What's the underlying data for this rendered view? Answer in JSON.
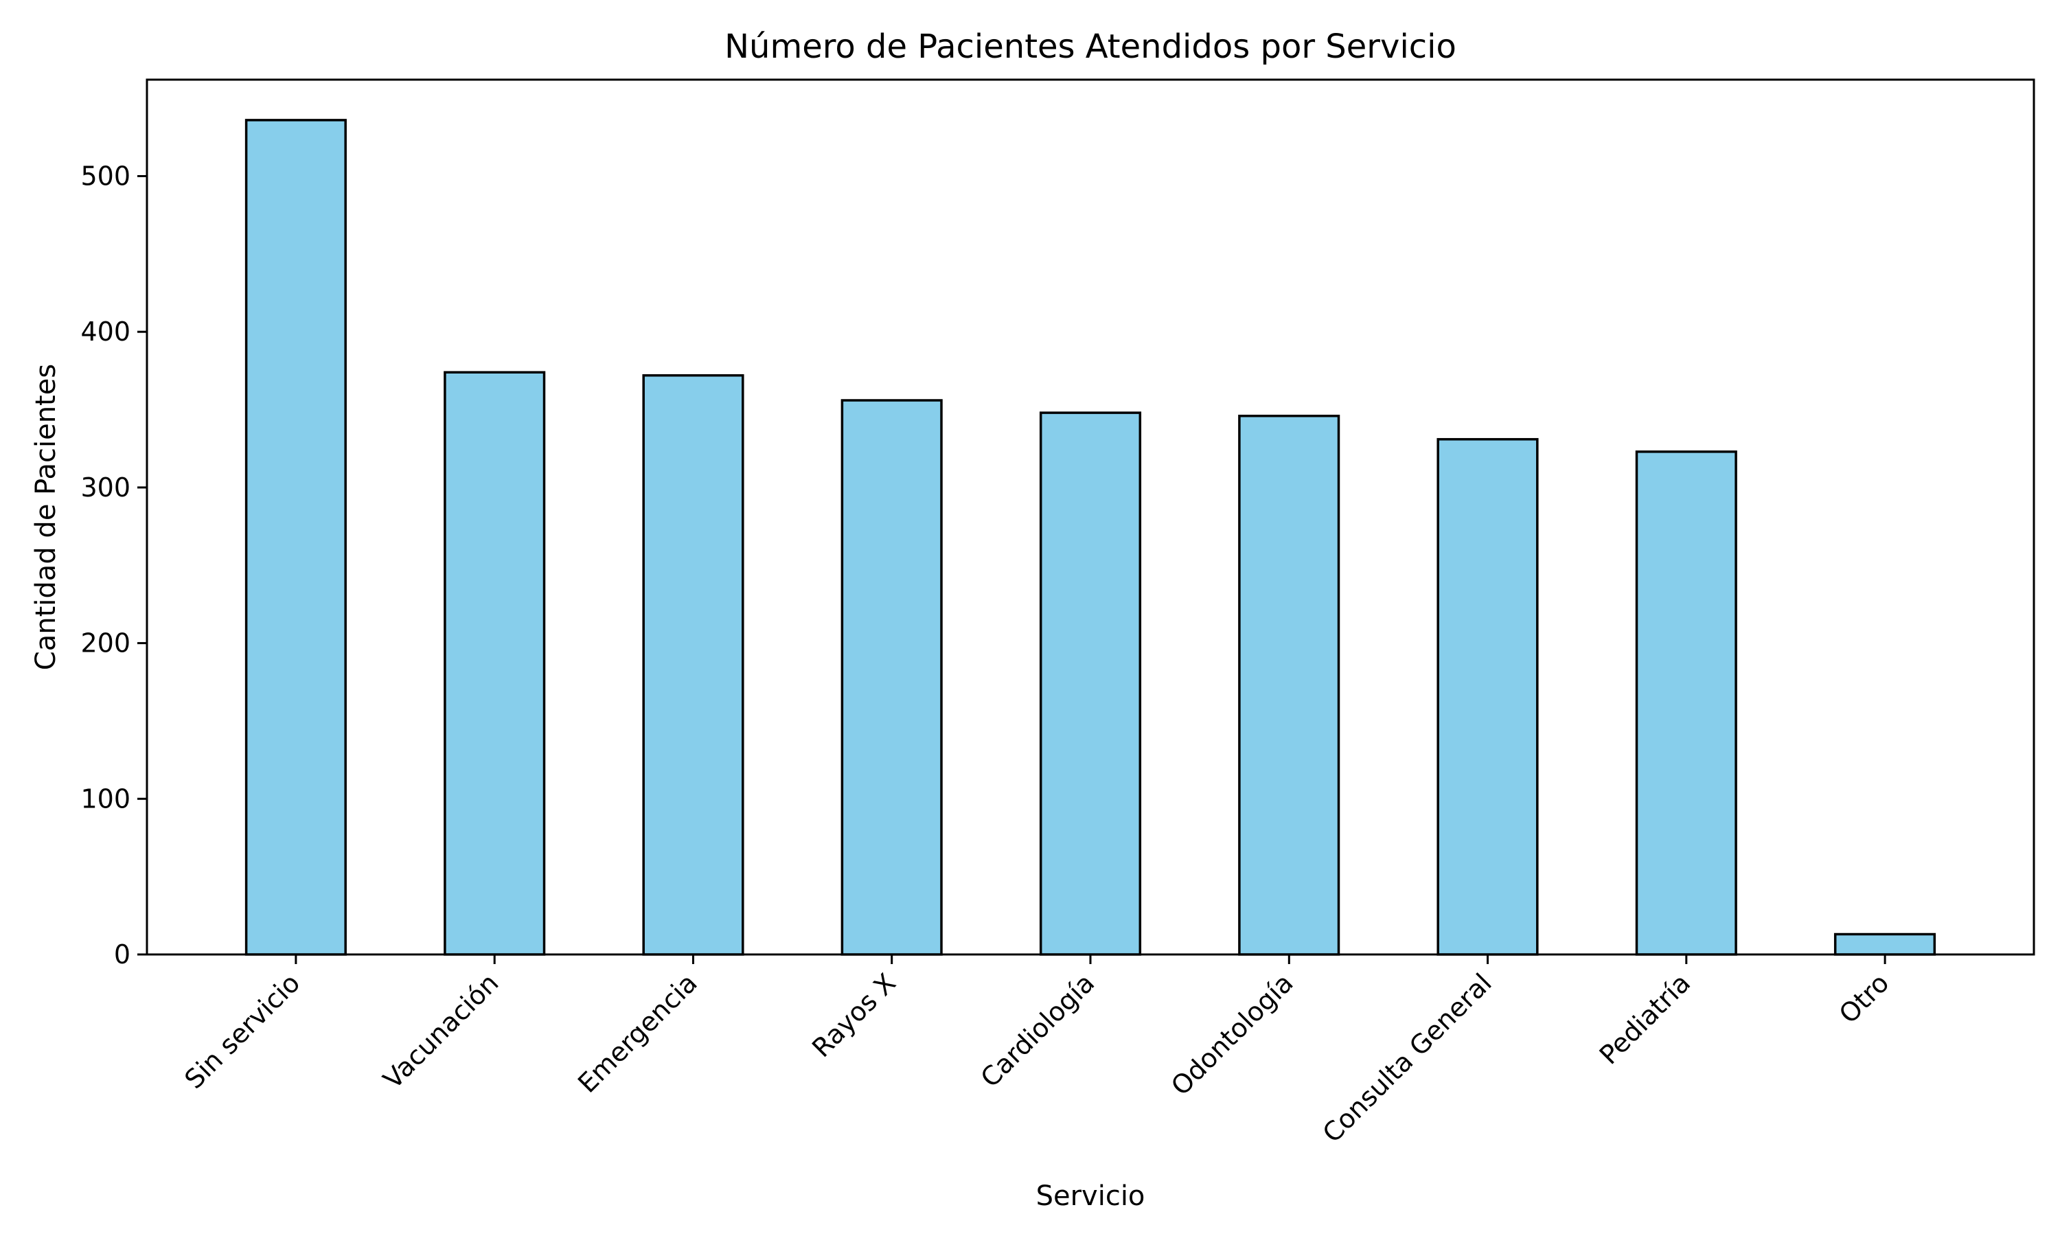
{
  "chart_data": {
    "type": "bar",
    "title": "Número de Pacientes Atendidos por Servicio",
    "xlabel": "Servicio",
    "ylabel": "Cantidad de Pacientes",
    "categories": [
      "Sin servicio",
      "Vacunación",
      "Emergencia",
      "Rayos X",
      "Cardiología",
      "Odontología",
      "Consulta General",
      "Pediatría",
      "Otro"
    ],
    "values": [
      536,
      374,
      372,
      356,
      348,
      346,
      331,
      323,
      13
    ],
    "ylim": [
      0,
      562
    ],
    "yticks": [
      0,
      100,
      200,
      300,
      400,
      500
    ],
    "grid": false,
    "legend": "none",
    "bar_color": "#87CEEB",
    "edge_color": "#000000"
  }
}
